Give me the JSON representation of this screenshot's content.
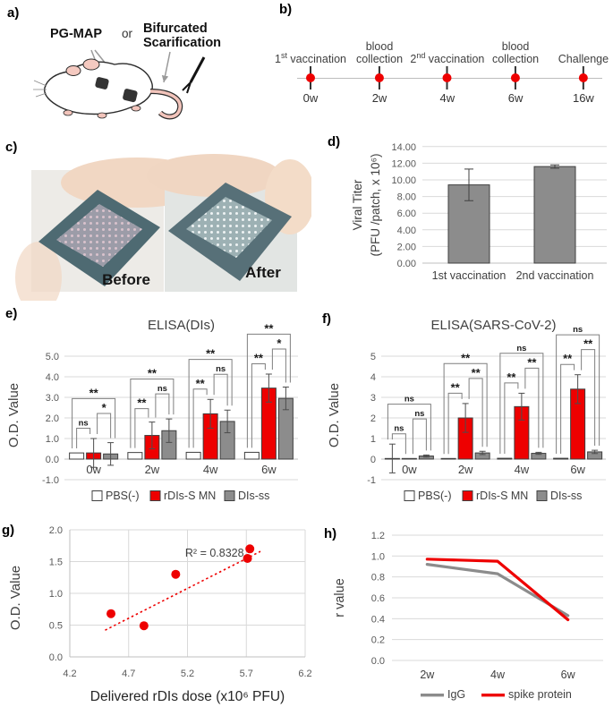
{
  "figure": {
    "panels": {
      "a": {
        "label": "a)",
        "method1": "PG-MAP",
        "conjunction": "or",
        "method2": [
          "Bifurcated",
          "Scarification"
        ]
      },
      "b": {
        "label": "b)",
        "events": [
          {
            "parts": [
              [
                "1",
                0
              ],
              [
                "st",
                1
              ],
              [
                " vaccination",
                0
              ]
            ],
            "week": "0w"
          },
          {
            "lines": [
              "blood",
              "collection"
            ],
            "week": "2w"
          },
          {
            "parts": [
              [
                "2",
                0
              ],
              [
                "nd",
                1
              ],
              [
                " vaccination",
                0
              ]
            ],
            "week": "4w"
          },
          {
            "lines": [
              "blood",
              "collection"
            ],
            "week": "6w"
          },
          {
            "lines": [
              "Challenge"
            ],
            "week": "16w"
          }
        ]
      },
      "c": {
        "label": "c)",
        "photo_labels": [
          "Before",
          "After"
        ]
      },
      "d": {
        "label": "d)"
      },
      "e": {
        "label": "e)"
      },
      "f": {
        "label": "f)"
      },
      "g": {
        "label": "g)"
      },
      "h": {
        "label": "h)"
      }
    }
  },
  "colors": {
    "accent_red": "#ee0000",
    "bar_gray": "#8c8c8c",
    "bar_white": "#ffffff",
    "grid": "#d9d9d9",
    "axis_text": "#595959",
    "label_text": "#404040"
  },
  "chart_data": [
    {
      "id": "d",
      "type": "bar",
      "title": "",
      "ylabel_lines": [
        "Viral Titer",
        "(PFU /patch, x 10⁶)"
      ],
      "categories": [
        "1st vaccination",
        "2nd vaccination"
      ],
      "series": [
        {
          "name": "viral_titer",
          "color": "#8c8c8c",
          "values": [
            9.4,
            11.6
          ],
          "errors": [
            1.9,
            0.2
          ]
        }
      ],
      "ylim": [
        0,
        14
      ],
      "ytick_labels": [
        "0.00",
        "2.00",
        "4.00",
        "6.00",
        "8.00",
        "10.00",
        "12.00",
        "14.00"
      ],
      "grid": true
    },
    {
      "id": "e",
      "type": "grouped_bar",
      "title": "ELISA(DIs)",
      "ylabel": "O.D. Value",
      "categories": [
        "0w",
        "2w",
        "4w",
        "6w"
      ],
      "series": [
        {
          "name": "PBS(-)",
          "color": "#ffffff",
          "values": [
            0.3,
            0.32,
            0.33,
            0.33
          ],
          "errors": [
            0,
            0,
            0,
            0
          ]
        },
        {
          "name": "rDIs-S MN",
          "color": "#ee0000",
          "values": [
            0.3,
            1.15,
            2.2,
            3.45
          ],
          "errors": [
            0.7,
            0.65,
            0.7,
            0.68
          ]
        },
        {
          "name": "DIs-ss",
          "color": "#8c8c8c",
          "values": [
            0.25,
            1.38,
            1.83,
            2.95
          ],
          "errors": [
            0.55,
            0.57,
            0.55,
            0.55
          ]
        }
      ],
      "ylim": [
        -1,
        5
      ],
      "ytick_labels": [
        "-1.0",
        "0.0",
        "1.0",
        "2.0",
        "3.0",
        "4.0",
        "5.0"
      ],
      "grid": true,
      "legend_position": "bottom",
      "significance": [
        {
          "category": "0w",
          "pairs": [
            {
              "between": [
                "PBS(-)",
                "rDIs-S MN"
              ],
              "label": "ns"
            },
            {
              "between": [
                "rDIs-S MN",
                "DIs-ss"
              ],
              "label": "*"
            },
            {
              "between": [
                "PBS(-)",
                "DIs-ss"
              ],
              "label": "**"
            }
          ]
        },
        {
          "category": "2w",
          "pairs": [
            {
              "between": [
                "PBS(-)",
                "rDIs-S MN"
              ],
              "label": "**"
            },
            {
              "between": [
                "rDIs-S MN",
                "DIs-ss"
              ],
              "label": "ns"
            },
            {
              "between": [
                "PBS(-)",
                "DIs-ss"
              ],
              "label": "**"
            }
          ]
        },
        {
          "category": "4w",
          "pairs": [
            {
              "between": [
                "PBS(-)",
                "rDIs-S MN"
              ],
              "label": "**"
            },
            {
              "between": [
                "rDIs-S MN",
                "DIs-ss"
              ],
              "label": "ns"
            },
            {
              "between": [
                "PBS(-)",
                "DIs-ss"
              ],
              "label": "**"
            }
          ]
        },
        {
          "category": "6w",
          "pairs": [
            {
              "between": [
                "PBS(-)",
                "rDIs-S MN"
              ],
              "label": "**"
            },
            {
              "between": [
                "rDIs-S MN",
                "DIs-ss"
              ],
              "label": "*"
            },
            {
              "between": [
                "PBS(-)",
                "DIs-ss"
              ],
              "label": "**"
            }
          ]
        }
      ]
    },
    {
      "id": "f",
      "type": "grouped_bar",
      "title": "ELISA(SARS-CoV-2)",
      "ylabel": "O.D. Value",
      "categories": [
        "0w",
        "2w",
        "4w",
        "6w"
      ],
      "series": [
        {
          "name": "PBS(-)",
          "color": "#ffffff",
          "values": [
            0.03,
            0.03,
            0.04,
            0.04
          ],
          "errors": [
            0.7,
            0,
            0,
            0
          ]
        },
        {
          "name": "rDIs-S MN",
          "color": "#ee0000",
          "values": [
            0.03,
            2.0,
            2.55,
            3.4
          ],
          "errors": [
            0,
            0.7,
            0.65,
            0.7
          ]
        },
        {
          "name": "DIs-ss",
          "color": "#8c8c8c",
          "values": [
            0.15,
            0.3,
            0.28,
            0.35
          ],
          "errors": [
            0.05,
            0.08,
            0.05,
            0.08
          ]
        }
      ],
      "ylim": [
        -1,
        5
      ],
      "ytick_labels": [
        "-1",
        "0",
        "1",
        "2",
        "3",
        "4",
        "5"
      ],
      "grid": true,
      "legend_position": "bottom",
      "significance": [
        {
          "category": "0w",
          "pairs": [
            {
              "between": [
                "PBS(-)",
                "rDIs-S MN"
              ],
              "label": "ns"
            },
            {
              "between": [
                "rDIs-S MN",
                "DIs-ss"
              ],
              "label": "ns"
            },
            {
              "between": [
                "PBS(-)",
                "DIs-ss"
              ],
              "label": "ns"
            }
          ]
        },
        {
          "category": "2w",
          "pairs": [
            {
              "between": [
                "PBS(-)",
                "rDIs-S MN"
              ],
              "label": "**"
            },
            {
              "between": [
                "rDIs-S MN",
                "DIs-ss"
              ],
              "label": "**"
            },
            {
              "between": [
                "PBS(-)",
                "DIs-ss"
              ],
              "label": "**"
            }
          ]
        },
        {
          "category": "4w",
          "pairs": [
            {
              "between": [
                "PBS(-)",
                "rDIs-S MN"
              ],
              "label": "**"
            },
            {
              "between": [
                "rDIs-S MN",
                "DIs-ss"
              ],
              "label": "**"
            },
            {
              "between": [
                "PBS(-)",
                "DIs-ss"
              ],
              "label": "ns"
            }
          ]
        },
        {
          "category": "6w",
          "pairs": [
            {
              "between": [
                "PBS(-)",
                "rDIs-S MN"
              ],
              "label": "**"
            },
            {
              "between": [
                "rDIs-S MN",
                "DIs-ss"
              ],
              "label": "**"
            },
            {
              "between": [
                "PBS(-)",
                "DIs-ss"
              ],
              "label": "ns"
            }
          ]
        }
      ]
    },
    {
      "id": "g",
      "type": "scatter",
      "xlabel": "Delivered rDIs dose (x10⁶ PFU)",
      "ylabel": "O.D. Value",
      "points": [
        {
          "x": 4.55,
          "y": 0.68
        },
        {
          "x": 4.83,
          "y": 0.49
        },
        {
          "x": 5.1,
          "y": 1.3
        },
        {
          "x": 5.71,
          "y": 1.55
        },
        {
          "x": 5.73,
          "y": 1.7
        }
      ],
      "trendline": {
        "x1": 4.5,
        "y1": 0.42,
        "x2": 5.82,
        "y2": 1.66,
        "color": "#ee0000",
        "style": "dotted"
      },
      "annotation": "R² = 0.8328",
      "r_squared": 0.8328,
      "xlim": [
        4.2,
        6.2
      ],
      "xtick_labels": [
        "4.2",
        "4.7",
        "5.2",
        "5.7",
        "6.2"
      ],
      "ylim": [
        0,
        2
      ],
      "ytick_labels": [
        "0.0",
        "0.5",
        "1.0",
        "1.5",
        "2.0"
      ],
      "point_color": "#ee0000",
      "grid": true
    },
    {
      "id": "h",
      "type": "line",
      "ylabel": "r value",
      "categories": [
        "2w",
        "4w",
        "6w"
      ],
      "series": [
        {
          "name": "IgG",
          "color": "#8c8c8c",
          "values": [
            0.92,
            0.83,
            0.43
          ]
        },
        {
          "name": "spike protein",
          "color": "#ee0000",
          "values": [
            0.97,
            0.95,
            0.39
          ]
        }
      ],
      "ylim": [
        0,
        1.2
      ],
      "ytick_labels": [
        "0.0",
        "0.2",
        "0.4",
        "0.6",
        "0.8",
        "1.0",
        "1.2"
      ],
      "grid": true,
      "legend_position": "bottom"
    }
  ]
}
